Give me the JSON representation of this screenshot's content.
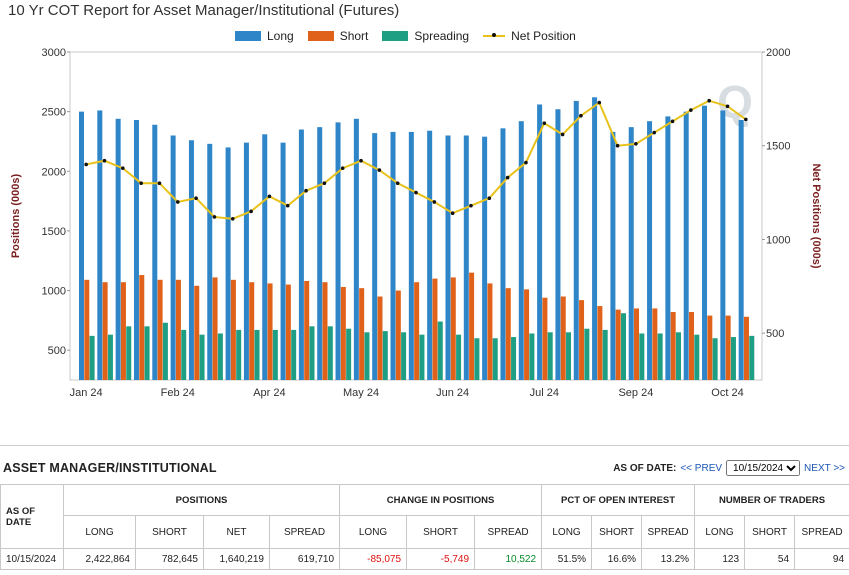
{
  "chart_data": {
    "type": "bar",
    "title": "10 Yr COT Report for Asset Manager/Institutional (Futures)",
    "ylabel_left": "Positions (000s)",
    "ylabel_right": "Net Positions (000s)",
    "ylim_left": [
      250,
      3000
    ],
    "ylim_right": [
      250,
      2000
    ],
    "yticks_left": [
      500,
      1000,
      1500,
      2000,
      2500,
      3000
    ],
    "yticks_right": [
      500,
      1000,
      1500,
      2000
    ],
    "xtick_labels": [
      "Jan 24",
      "Feb 24",
      "Apr 24",
      "May 24",
      "Jun 24",
      "Jul 24",
      "Sep 24",
      "Oct 24"
    ],
    "xtick_positions": [
      0.5,
      5.5,
      10.5,
      15.5,
      20.5,
      25.5,
      30.5,
      35.5
    ],
    "legend_placement": "top-center",
    "colors": {
      "long": "#2e85c8",
      "short": "#e0621a",
      "spreading": "#1e9e82",
      "net": "#e8c21a"
    },
    "series": [
      {
        "name": "Long",
        "axis": "left",
        "values": [
          2500,
          2510,
          2440,
          2430,
          2390,
          2300,
          2260,
          2230,
          2200,
          2240,
          2310,
          2240,
          2350,
          2370,
          2410,
          2440,
          2320,
          2330,
          2330,
          2340,
          2300,
          2300,
          2290,
          2360,
          2420,
          2560,
          2520,
          2590,
          2620,
          2330,
          2370,
          2420,
          2460,
          2500,
          2550,
          2510,
          2430
        ]
      },
      {
        "name": "Short",
        "axis": "left",
        "values": [
          1090,
          1070,
          1070,
          1130,
          1090,
          1090,
          1040,
          1110,
          1090,
          1070,
          1060,
          1050,
          1080,
          1070,
          1030,
          1020,
          950,
          1000,
          1070,
          1100,
          1110,
          1150,
          1060,
          1020,
          1010,
          940,
          950,
          920,
          870,
          840,
          850,
          850,
          820,
          820,
          790,
          790,
          780
        ]
      },
      {
        "name": "Spreading",
        "axis": "left",
        "values": [
          620,
          630,
          700,
          700,
          730,
          670,
          630,
          640,
          670,
          670,
          670,
          670,
          700,
          700,
          680,
          650,
          660,
          650,
          630,
          740,
          630,
          600,
          600,
          610,
          640,
          650,
          650,
          680,
          670,
          810,
          640,
          640,
          650,
          630,
          600,
          610,
          620
        ]
      },
      {
        "name": "Net Position",
        "axis": "right",
        "values": [
          1400,
          1420,
          1380,
          1300,
          1300,
          1200,
          1220,
          1120,
          1110,
          1150,
          1230,
          1180,
          1260,
          1300,
          1380,
          1420,
          1370,
          1300,
          1250,
          1200,
          1140,
          1180,
          1220,
          1330,
          1410,
          1620,
          1560,
          1660,
          1730,
          1500,
          1510,
          1570,
          1630,
          1690,
          1740,
          1710,
          1640
        ]
      }
    ]
  },
  "panel": {
    "title": "ASSET MANAGER/INSTITUTIONAL",
    "as_of_label": "AS OF DATE:",
    "prev_label": "<< PREV",
    "next_label": "NEXT >>",
    "selected_date": "10/15/2024",
    "groups": {
      "as_of": "AS OF DATE",
      "positions": "POSITIONS",
      "change": "CHANGE IN POSITIONS",
      "pct": "PCT OF OPEN INTEREST",
      "traders": "NUMBER OF TRADERS"
    },
    "sub": {
      "long": "LONG",
      "short": "SHORT",
      "net": "NET",
      "spread": "SPREAD"
    },
    "row": {
      "date": "10/15/2024",
      "pos_long": "2,422,864",
      "pos_short": "782,645",
      "pos_net": "1,640,219",
      "pos_spread": "619,710",
      "chg_long": "-85,075",
      "chg_short": "-5,749",
      "chg_spread": "10,522",
      "pct_long": "51.5%",
      "pct_short": "16.6%",
      "pct_spread": "13.2%",
      "tr_long": "123",
      "tr_short": "54",
      "tr_spread": "94"
    }
  }
}
